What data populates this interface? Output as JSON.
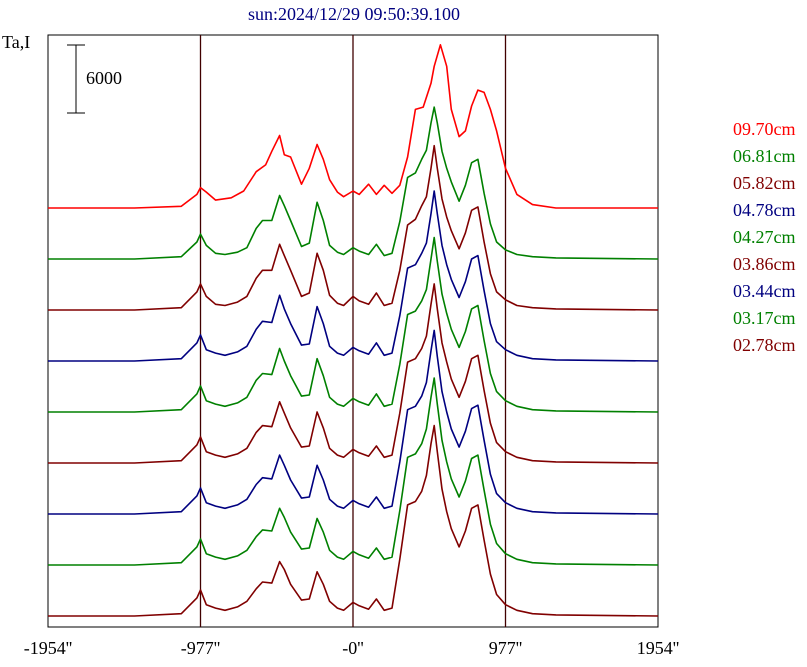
{
  "chart_data": {
    "type": "line",
    "title": "sun:2024/12/29 09:50:39.100",
    "ylabel": "Ta,I",
    "scale_bar_label": "6000",
    "x_ticks": [
      "-1954''",
      "-977''",
      "-0''",
      "977''",
      "1954''"
    ],
    "xlim": [
      -1954,
      1954
    ],
    "vertical_lines": [
      -977,
      0,
      977
    ],
    "series": [
      {
        "name": "09.70cm",
        "color": "#ff0000",
        "x": [
          -1954,
          -1400,
          -1100,
          -1000,
          -977,
          -940,
          -880,
          -780,
          -700,
          -620,
          -560,
          -520,
          -470,
          -440,
          -400,
          -330,
          -280,
          -230,
          -190,
          -150,
          -100,
          -60,
          0,
          40,
          100,
          150,
          200,
          250,
          300,
          350,
          400,
          450,
          500,
          520,
          560,
          600,
          630,
          680,
          720,
          760,
          800,
          840,
          880,
          920,
          977,
          1050,
          1150,
          1300,
          1954
        ],
        "y": [
          0,
          0,
          150,
          1200,
          1800,
          1400,
          700,
          900,
          1500,
          3200,
          3800,
          5000,
          6400,
          4700,
          4500,
          2100,
          3500,
          5600,
          4300,
          2500,
          1400,
          1000,
          1500,
          1200,
          2100,
          1200,
          2000,
          1300,
          2000,
          4500,
          8700,
          8900,
          11000,
          12500,
          14400,
          12500,
          8700,
          6300,
          6800,
          9000,
          10400,
          10200,
          8700,
          6800,
          3500,
          1200,
          300,
          0,
          0
        ]
      },
      {
        "name": "06.81cm",
        "color": "#008000",
        "x": [
          -1954,
          -1400,
          -1100,
          -1000,
          -977,
          -940,
          -880,
          -820,
          -740,
          -680,
          -620,
          -580,
          -520,
          -470,
          -440,
          -400,
          -330,
          -280,
          -230,
          -190,
          -150,
          -100,
          -60,
          0,
          40,
          100,
          150,
          200,
          250,
          300,
          350,
          400,
          440,
          470,
          500,
          520,
          540,
          570,
          600,
          630,
          680,
          720,
          760,
          800,
          840,
          880,
          920,
          977,
          1050,
          1150,
          1300,
          1954
        ],
        "y": [
          0,
          0,
          200,
          1500,
          2200,
          1200,
          500,
          400,
          600,
          1000,
          2700,
          3400,
          3400,
          5600,
          4700,
          3400,
          1100,
          1400,
          5000,
          3400,
          1200,
          600,
          400,
          1000,
          700,
          400,
          1300,
          300,
          500,
          3300,
          7200,
          7600,
          8800,
          9600,
          12000,
          13400,
          12000,
          9500,
          8000,
          6800,
          5100,
          6500,
          8500,
          8800,
          5800,
          3100,
          1500,
          800,
          400,
          200,
          100,
          0
        ]
      },
      {
        "name": "05.82cm",
        "color": "#800000",
        "x": [
          -1954,
          -1400,
          -1100,
          -1000,
          -977,
          -940,
          -880,
          -820,
          -740,
          -680,
          -620,
          -580,
          -520,
          -470,
          -440,
          -400,
          -330,
          -280,
          -230,
          -190,
          -150,
          -100,
          -60,
          0,
          40,
          100,
          150,
          200,
          250,
          300,
          350,
          400,
          440,
          470,
          500,
          520,
          540,
          570,
          600,
          630,
          680,
          720,
          760,
          800,
          840,
          880,
          920,
          977,
          1050,
          1150,
          1300,
          1954
        ],
        "y": [
          0,
          0,
          200,
          1600,
          2300,
          1200,
          500,
          400,
          700,
          1200,
          2800,
          3500,
          3500,
          5800,
          4800,
          3500,
          1200,
          1500,
          5000,
          3500,
          1300,
          600,
          400,
          1200,
          800,
          500,
          1500,
          400,
          600,
          3500,
          7500,
          8000,
          9200,
          10000,
          12500,
          14500,
          12500,
          9800,
          8200,
          7000,
          5400,
          6800,
          8800,
          9100,
          6000,
          3200,
          1600,
          900,
          400,
          200,
          100,
          0
        ]
      },
      {
        "name": "04.78cm",
        "color": "#000080",
        "x": [
          -1954,
          -1400,
          -1100,
          -1000,
          -977,
          -940,
          -880,
          -820,
          -740,
          -680,
          -620,
          -580,
          -520,
          -470,
          -440,
          -400,
          -330,
          -280,
          -230,
          -190,
          -150,
          -100,
          -60,
          0,
          40,
          100,
          150,
          200,
          250,
          300,
          350,
          400,
          440,
          470,
          500,
          520,
          540,
          570,
          600,
          630,
          680,
          720,
          760,
          800,
          840,
          880,
          920,
          977,
          1050,
          1150,
          1300,
          1954
        ],
        "y": [
          0,
          0,
          200,
          1600,
          2300,
          1000,
          700,
          500,
          800,
          1300,
          2800,
          3500,
          3400,
          5800,
          4600,
          3300,
          1400,
          1500,
          4800,
          3300,
          1300,
          700,
          500,
          1200,
          900,
          600,
          1600,
          500,
          700,
          4000,
          8200,
          8500,
          9500,
          10400,
          13000,
          15000,
          13000,
          10200,
          8500,
          7200,
          5600,
          7000,
          9000,
          9300,
          6200,
          3300,
          1700,
          1000,
          500,
          200,
          100,
          0
        ]
      },
      {
        "name": "04.27cm",
        "color": "#008000",
        "x": [
          -1954,
          -1400,
          -1100,
          -1000,
          -977,
          -940,
          -880,
          -820,
          -740,
          -680,
          -620,
          -580,
          -520,
          -470,
          -440,
          -400,
          -330,
          -280,
          -230,
          -190,
          -150,
          -100,
          -60,
          0,
          40,
          100,
          150,
          200,
          250,
          300,
          350,
          400,
          440,
          470,
          500,
          520,
          540,
          570,
          600,
          630,
          680,
          720,
          760,
          800,
          840,
          880,
          920,
          977,
          1050,
          1150,
          1300,
          1954
        ],
        "y": [
          0,
          0,
          200,
          1600,
          2300,
          1000,
          700,
          500,
          800,
          1300,
          2800,
          3400,
          3300,
          5600,
          4500,
          3200,
          1400,
          1500,
          4700,
          3200,
          1300,
          700,
          500,
          1200,
          900,
          600,
          1600,
          500,
          700,
          4200,
          8600,
          8900,
          9800,
          10800,
          13500,
          15400,
          13300,
          10400,
          8700,
          7300,
          5700,
          7100,
          9100,
          9400,
          6300,
          3400,
          1800,
          1000,
          500,
          200,
          100,
          0
        ]
      },
      {
        "name": "03.86cm",
        "color": "#800000",
        "x": [
          -1954,
          -1400,
          -1100,
          -1000,
          -977,
          -940,
          -880,
          -820,
          -740,
          -680,
          -620,
          -580,
          -520,
          -470,
          -440,
          -400,
          -330,
          -280,
          -230,
          -190,
          -150,
          -100,
          -60,
          0,
          40,
          100,
          150,
          200,
          250,
          300,
          350,
          400,
          440,
          470,
          500,
          520,
          540,
          570,
          600,
          630,
          680,
          720,
          760,
          800,
          840,
          880,
          920,
          977,
          1050,
          1150,
          1300,
          1954
        ],
        "y": [
          0,
          0,
          200,
          1600,
          2300,
          1000,
          700,
          500,
          800,
          1300,
          2700,
          3300,
          3200,
          5400,
          4400,
          3100,
          1400,
          1500,
          4500,
          3100,
          1300,
          700,
          500,
          1200,
          900,
          600,
          1500,
          500,
          700,
          4400,
          8900,
          9200,
          10100,
          11200,
          14000,
          15800,
          13600,
          10600,
          8900,
          7400,
          5800,
          7200,
          9200,
          9500,
          6400,
          3500,
          1800,
          1000,
          500,
          200,
          100,
          0
        ]
      },
      {
        "name": "03.44cm",
        "color": "#000080",
        "x": [
          -1954,
          -1400,
          -1100,
          -1000,
          -977,
          -940,
          -880,
          -820,
          -740,
          -680,
          -620,
          -580,
          -520,
          -470,
          -440,
          -400,
          -330,
          -280,
          -230,
          -190,
          -150,
          -100,
          -60,
          0,
          40,
          100,
          150,
          200,
          250,
          300,
          350,
          400,
          440,
          470,
          500,
          520,
          540,
          570,
          600,
          630,
          680,
          720,
          760,
          800,
          840,
          880,
          920,
          977,
          1050,
          1150,
          1300,
          1954
        ],
        "y": [
          0,
          0,
          200,
          1600,
          2300,
          1000,
          700,
          500,
          800,
          1300,
          2600,
          3200,
          3100,
          5200,
          4300,
          3000,
          1400,
          1500,
          4300,
          3000,
          1300,
          700,
          500,
          1200,
          900,
          600,
          1500,
          500,
          700,
          4600,
          9200,
          9500,
          10400,
          11600,
          14400,
          16200,
          13900,
          10800,
          9000,
          7500,
          5900,
          7300,
          9300,
          9600,
          6500,
          3500,
          1800,
          1000,
          500,
          200,
          100,
          0
        ]
      },
      {
        "name": "03.17cm",
        "color": "#008000",
        "x": [
          -1954,
          -1400,
          -1100,
          -1000,
          -977,
          -940,
          -880,
          -820,
          -740,
          -680,
          -620,
          -580,
          -520,
          -470,
          -440,
          -400,
          -330,
          -280,
          -230,
          -190,
          -150,
          -100,
          -60,
          0,
          40,
          100,
          150,
          200,
          250,
          300,
          350,
          400,
          440,
          470,
          500,
          520,
          540,
          570,
          600,
          630,
          680,
          720,
          760,
          800,
          840,
          880,
          920,
          977,
          1050,
          1150,
          1300,
          1954
        ],
        "y": [
          0,
          0,
          200,
          1600,
          2300,
          1000,
          700,
          500,
          800,
          1300,
          2500,
          3100,
          3000,
          5000,
          4200,
          2900,
          1400,
          1500,
          4100,
          2900,
          1300,
          700,
          500,
          1200,
          900,
          600,
          1500,
          500,
          700,
          4800,
          9500,
          9800,
          10700,
          12000,
          14800,
          16500,
          14200,
          11000,
          9100,
          7600,
          6000,
          7400,
          9400,
          9700,
          6600,
          3600,
          1900,
          1000,
          500,
          200,
          100,
          0
        ]
      },
      {
        "name": "02.78cm",
        "color": "#800000",
        "x": [
          -1954,
          -1400,
          -1100,
          -1000,
          -977,
          -940,
          -880,
          -820,
          -740,
          -680,
          -620,
          -580,
          -520,
          -470,
          -440,
          -400,
          -330,
          -280,
          -230,
          -190,
          -150,
          -100,
          -60,
          0,
          40,
          100,
          150,
          200,
          250,
          300,
          350,
          400,
          440,
          470,
          500,
          520,
          540,
          570,
          600,
          630,
          680,
          720,
          760,
          800,
          840,
          880,
          920,
          977,
          1050,
          1150,
          1300,
          1954
        ],
        "y": [
          0,
          0,
          200,
          1600,
          2300,
          1000,
          700,
          500,
          800,
          1300,
          2400,
          3000,
          2900,
          4800,
          4100,
          2800,
          1400,
          1500,
          3900,
          2800,
          1300,
          700,
          500,
          1200,
          900,
          600,
          1500,
          500,
          700,
          5000,
          9800,
          10100,
          11000,
          12400,
          15200,
          16800,
          14500,
          11200,
          9200,
          7700,
          6100,
          7500,
          9500,
          9800,
          6700,
          3700,
          1900,
          1000,
          500,
          200,
          100,
          0
        ]
      }
    ]
  }
}
